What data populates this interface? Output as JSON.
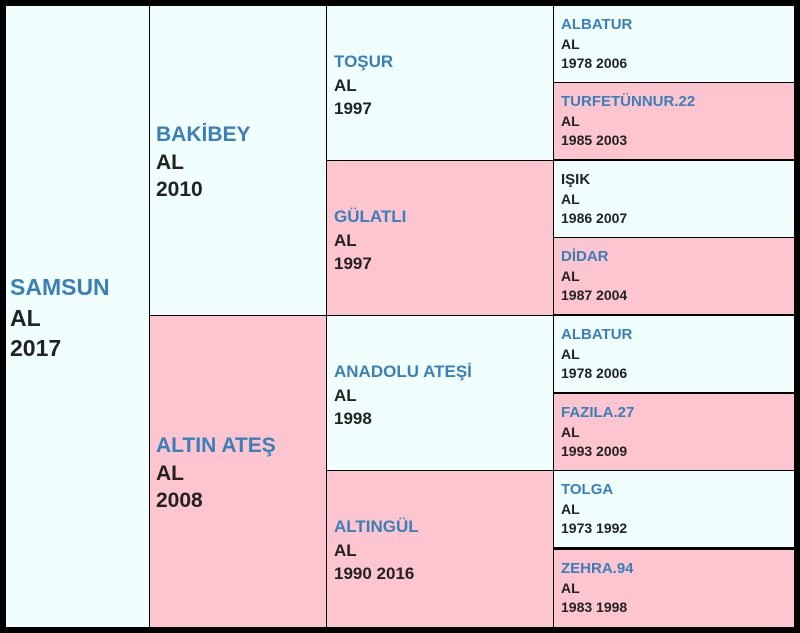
{
  "colors": {
    "male_bg": "#f0fefe",
    "female_bg": "#fcc5d0",
    "name_blue": "#3a7fb8",
    "frame": "#000000"
  },
  "subject": {
    "name": "SAMSUN",
    "color": "AL",
    "years": "2017"
  },
  "sire": {
    "name": "BAKİBEY",
    "color": "AL",
    "years": "2010"
  },
  "dam": {
    "name": "ALTIN ATEŞ",
    "color": "AL",
    "years": "2008"
  },
  "sire_sire": {
    "name": "TOŞUR",
    "color": "AL",
    "years": "1997"
  },
  "sire_dam": {
    "name": "GÜLATLI",
    "color": "AL",
    "years": "1997"
  },
  "dam_sire": {
    "name": "ANADOLU ATEŞİ",
    "color": "AL",
    "years": "1998"
  },
  "dam_dam": {
    "name": "ALTINGÜL",
    "color": "AL",
    "years": "1990 2016"
  },
  "ggp": [
    {
      "name": "ALBATUR",
      "color": "AL",
      "years": "1978 2006"
    },
    {
      "name": "TURFETÜNNUR.22",
      "color": "AL",
      "years": "1985 2003"
    },
    {
      "name": "IŞIK",
      "color": "AL",
      "years": "1986 2007"
    },
    {
      "name": "DİDAR",
      "color": "AL",
      "years": "1987 2004"
    },
    {
      "name": "ALBATUR",
      "color": "AL",
      "years": "1978 2006"
    },
    {
      "name": "FAZILA.27",
      "color": "AL",
      "years": "1993 2009"
    },
    {
      "name": "TOLGA",
      "color": "AL",
      "years": "1973 1992"
    },
    {
      "name": "ZEHRA.94",
      "color": "AL",
      "years": "1983 1998"
    }
  ]
}
